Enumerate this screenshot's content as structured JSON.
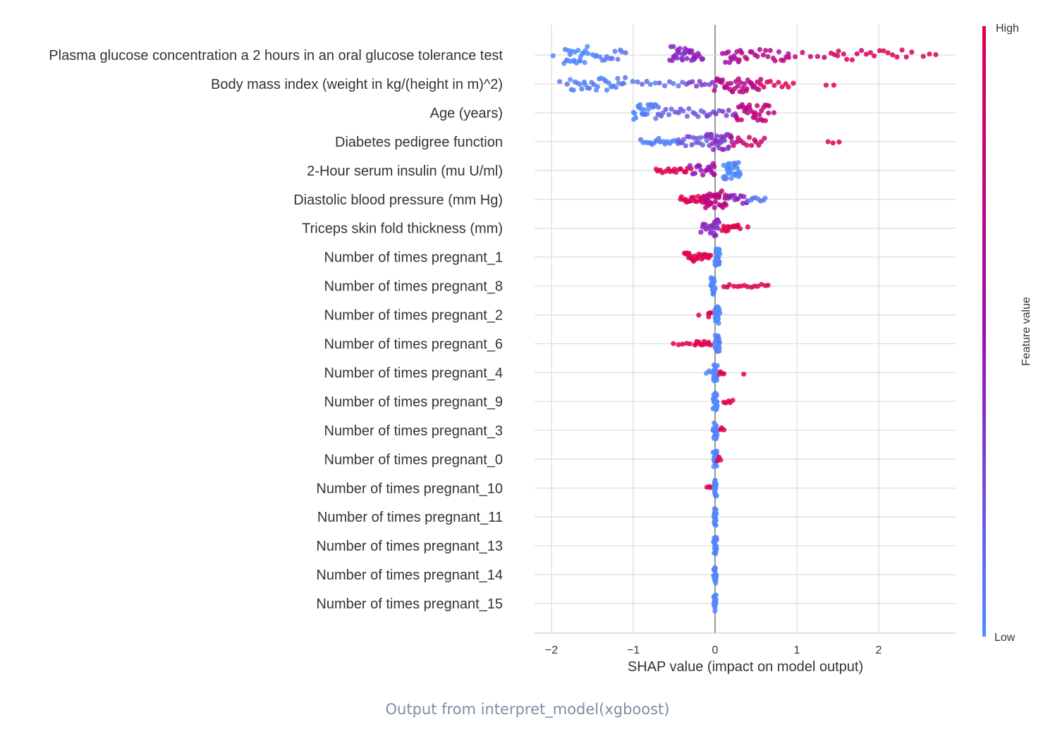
{
  "chart_data": {
    "type": "scatter",
    "subtype": "shap-beeswarm",
    "xlabel": "SHAP value (impact on model output)",
    "xlim": [
      -2.22,
      2.95
    ],
    "xticks": [
      -2,
      -1,
      0,
      1,
      2
    ],
    "xtick_labels": [
      "−2",
      "−1",
      "0",
      "1",
      "2"
    ],
    "grid": true,
    "colorbar": {
      "title": "Feature value",
      "high_label": "High",
      "low_label": "Low",
      "low_color": "#4f8cff",
      "mid_color": "#9a0fb0",
      "high_color": "#e0004e"
    },
    "features": [
      {
        "name": "Plasma glucose concentration a 2 hours in an oral glucose tolerance test",
        "clusters": [
          [
            -1.98,
            -1.98,
            1,
            0.0,
            0.3
          ],
          [
            -1.85,
            -1.55,
            22,
            0.0,
            1.0
          ],
          [
            -1.5,
            -1.1,
            14,
            0.05,
            0.7
          ],
          [
            -0.55,
            -0.25,
            28,
            0.4,
            1.0
          ],
          [
            -0.25,
            -0.15,
            6,
            0.45,
            0.6
          ],
          [
            0.1,
            0.3,
            12,
            0.6,
            0.9
          ],
          [
            0.3,
            0.9,
            20,
            0.7,
            0.7
          ],
          [
            0.9,
            1.5,
            8,
            0.85,
            0.3
          ],
          [
            1.45,
            2.4,
            18,
            0.95,
            0.6
          ],
          [
            2.55,
            2.7,
            3,
            1.0,
            0.3
          ]
        ]
      },
      {
        "name": "Body mass index (weight in kg/(height in m)^2)",
        "clusters": [
          [
            -1.9,
            -1.9,
            1,
            0.0,
            0.3
          ],
          [
            -1.8,
            -1.1,
            30,
            0.05,
            0.8
          ],
          [
            -1.0,
            -0.4,
            12,
            0.1,
            0.3
          ],
          [
            -0.35,
            0.0,
            10,
            0.3,
            0.4
          ],
          [
            0.0,
            0.55,
            36,
            0.7,
            1.0
          ],
          [
            0.55,
            0.95,
            10,
            0.95,
            0.4
          ],
          [
            1.35,
            1.45,
            2,
            1.0,
            0.2
          ]
        ]
      },
      {
        "name": "Age (years)",
        "clusters": [
          [
            -1.0,
            -0.7,
            24,
            0.05,
            1.0
          ],
          [
            -0.7,
            -0.1,
            18,
            0.2,
            0.5
          ],
          [
            -0.1,
            0.25,
            10,
            0.3,
            0.4
          ],
          [
            0.25,
            0.65,
            30,
            0.75,
            1.0
          ],
          [
            0.65,
            0.72,
            2,
            0.8,
            0.2
          ]
        ]
      },
      {
        "name": "Diabetes pedigree function",
        "clusters": [
          [
            -0.9,
            -0.45,
            18,
            0.05,
            0.4
          ],
          [
            -0.45,
            -0.1,
            16,
            0.2,
            0.6
          ],
          [
            -0.1,
            0.2,
            30,
            0.35,
            1.0
          ],
          [
            0.2,
            0.6,
            14,
            0.85,
            0.5
          ],
          [
            1.38,
            1.52,
            3,
            1.0,
            0.2
          ]
        ]
      },
      {
        "name": "2-Hour serum insulin (mu U/ml)",
        "clusters": [
          [
            -0.72,
            -0.3,
            16,
            1.0,
            0.3
          ],
          [
            -0.3,
            -0.05,
            12,
            0.5,
            0.6
          ],
          [
            -0.05,
            0.0,
            6,
            0.6,
            0.9
          ],
          [
            0.1,
            0.3,
            30,
            0.0,
            1.0
          ]
        ]
      },
      {
        "name": "Diastolic blood pressure (mm Hg)",
        "clusters": [
          [
            -0.42,
            -0.1,
            18,
            1.0,
            0.4
          ],
          [
            -0.15,
            0.15,
            36,
            0.75,
            1.0
          ],
          [
            0.15,
            0.4,
            14,
            0.4,
            0.5
          ],
          [
            0.4,
            0.62,
            8,
            0.05,
            0.3
          ]
        ]
      },
      {
        "name": "Triceps skin fold thickness (mm)",
        "clusters": [
          [
            -0.18,
            -0.05,
            8,
            0.4,
            0.5
          ],
          [
            -0.05,
            0.05,
            14,
            0.4,
            1.0
          ],
          [
            0.08,
            0.3,
            14,
            1.0,
            0.4
          ],
          [
            0.4,
            0.42,
            1,
            1.0,
            0.2
          ]
        ]
      },
      {
        "name": "Number of times pregnant_1",
        "clusters": [
          [
            -0.38,
            -0.05,
            22,
            1.0,
            0.5
          ],
          [
            0.0,
            0.05,
            30,
            0.0,
            1.0
          ]
        ]
      },
      {
        "name": "Number of times pregnant_8",
        "clusters": [
          [
            -0.05,
            0.0,
            26,
            0.0,
            1.0
          ],
          [
            0.1,
            0.65,
            14,
            1.0,
            0.2
          ]
        ]
      },
      {
        "name": "Number of times pregnant_2",
        "clusters": [
          [
            -0.2,
            -0.2,
            1,
            1.0,
            0.3
          ],
          [
            -0.08,
            -0.05,
            4,
            1.0,
            0.3
          ],
          [
            0.0,
            0.05,
            26,
            0.0,
            1.0
          ]
        ]
      },
      {
        "name": "Number of times pregnant_6",
        "clusters": [
          [
            -0.5,
            -0.25,
            6,
            1.0,
            0.2
          ],
          [
            -0.25,
            -0.05,
            10,
            1.0,
            0.3
          ],
          [
            0.0,
            0.05,
            26,
            0.0,
            1.0
          ]
        ]
      },
      {
        "name": "Number of times pregnant_4",
        "clusters": [
          [
            -0.1,
            -0.05,
            3,
            0.0,
            0.3
          ],
          [
            -0.02,
            0.02,
            22,
            0.0,
            1.0
          ],
          [
            0.05,
            0.1,
            4,
            1.0,
            0.3
          ],
          [
            0.35,
            0.35,
            1,
            1.0,
            0.2
          ]
        ]
      },
      {
        "name": "Number of times pregnant_9",
        "clusters": [
          [
            -0.02,
            0.02,
            22,
            0.0,
            1.0
          ],
          [
            0.1,
            0.22,
            5,
            1.0,
            0.2
          ]
        ]
      },
      {
        "name": "Number of times pregnant_3",
        "clusters": [
          [
            -0.02,
            0.02,
            22,
            0.0,
            1.0
          ],
          [
            0.06,
            0.1,
            3,
            1.0,
            0.3
          ]
        ]
      },
      {
        "name": "Number of times pregnant_0",
        "clusters": [
          [
            -0.02,
            0.02,
            22,
            0.0,
            1.0
          ],
          [
            0.03,
            0.06,
            3,
            1.0,
            0.3
          ]
        ]
      },
      {
        "name": "Number of times pregnant_10",
        "clusters": [
          [
            -0.1,
            -0.05,
            3,
            1.0,
            0.2
          ],
          [
            -0.01,
            0.01,
            22,
            0.0,
            1.0
          ]
        ]
      },
      {
        "name": "Number of times pregnant_11",
        "clusters": [
          [
            -0.01,
            0.01,
            22,
            0.0,
            1.0
          ]
        ]
      },
      {
        "name": "Number of times pregnant_13",
        "clusters": [
          [
            -0.01,
            0.01,
            22,
            0.0,
            1.0
          ]
        ]
      },
      {
        "name": "Number of times pregnant_14",
        "clusters": [
          [
            -0.01,
            0.01,
            22,
            0.0,
            1.0
          ]
        ]
      },
      {
        "name": "Number of times pregnant_15",
        "clusters": [
          [
            -0.01,
            0.01,
            22,
            0.0,
            1.0
          ]
        ]
      }
    ],
    "cluster_format": "[shap_min, shap_max, point_count, feature_value_0to1, spread]"
  },
  "caption": "Output from interpret_model(xgboost)"
}
